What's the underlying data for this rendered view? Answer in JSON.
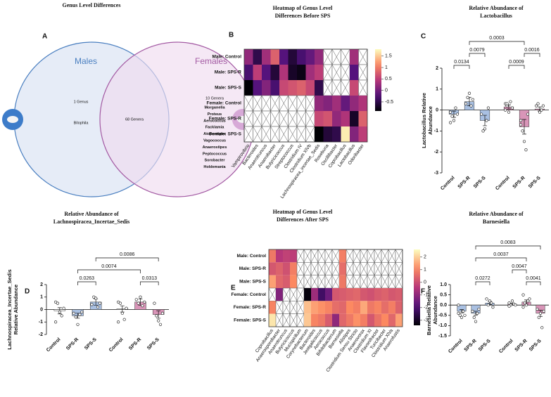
{
  "chart_data": [
    {
      "type": "venn",
      "panel": "A",
      "title": "Genus Level Differences",
      "sets": [
        {
          "name": "Males",
          "count_label": "1 Genus",
          "genera": [
            "Bilophila"
          ],
          "color": "#4a7fc0",
          "fill": "#d9e2f2"
        },
        {
          "name": "Females",
          "count_label": "10 Genera",
          "genera": [
            "Morganella",
            "Proteus",
            "Aerococcus",
            "Facklamia",
            "Atopostipes",
            "Vagococcus",
            "Anaerostipes",
            "Peptococcus",
            "Sorobacter",
            "Holdemania"
          ],
          "color": "#a35aa3",
          "fill": "#f0dcef"
        }
      ],
      "intersection_label": "68 Genera"
    },
    {
      "type": "heatmap",
      "panel": "B",
      "title": [
        "Heatmap of Genus Level",
        "Differences Before SPS"
      ],
      "rows": [
        "Male: Control",
        "Male: SPS-R",
        "Male: SPS-S",
        "Female: Control",
        "Female: SPS-R",
        "Female: SPS-S"
      ],
      "columns": [
        "Vampirovibrio",
        "Bacteroides",
        "Anaerotruncus",
        "Anaerobacter",
        "Butyricicoccus",
        "Streptococcus",
        "Clostridium IV",
        "Clostridium XlVb",
        "Lachnospiracea_incertae_Sedis",
        "Roseburia",
        "Oscillibacter",
        "Coprobacillus",
        "Lactobacillus",
        "Odoribacter"
      ],
      "values": [
        [
          0.2,
          -0.5,
          0.3,
          0.8,
          -0.2,
          -0.6,
          -0.3,
          -0.1,
          0.2,
          null,
          null,
          null,
          0.3,
          null
        ],
        [
          -0.3,
          0.5,
          -0.2,
          -0.6,
          0.4,
          -0.7,
          -0.8,
          0.3,
          0.5,
          null,
          null,
          null,
          -0.2,
          null
        ],
        [
          -0.9,
          -0.2,
          0.1,
          -0.3,
          0.6,
          0.7,
          0.8,
          0.6,
          -0.5,
          null,
          null,
          null,
          0.6,
          null
        ],
        [
          null,
          null,
          null,
          null,
          null,
          null,
          null,
          null,
          0.2,
          0.1,
          0.3,
          -0.1,
          0.2,
          0.4
        ],
        [
          null,
          null,
          null,
          null,
          null,
          null,
          null,
          null,
          0.6,
          0.7,
          0.2,
          0.4,
          -0.7,
          0.8
        ],
        [
          null,
          null,
          null,
          null,
          null,
          null,
          null,
          null,
          -0.9,
          -0.6,
          -0.5,
          1.7,
          0.1,
          0.5
        ]
      ],
      "zlim": [
        -0.9,
        1.8
      ],
      "zticks": [
        -0.5,
        0,
        0.5,
        1,
        1.5
      ]
    },
    {
      "type": "bar",
      "panel": "C",
      "title": [
        "Relative Abundance of",
        "Lactobacillus"
      ],
      "ylabel": [
        "Lactobacillus Relative",
        "Abundance"
      ],
      "categories": [
        "Control",
        "SPS-R",
        "SPS-S",
        "Control",
        "SPS-R",
        "SPS-S"
      ],
      "colors": [
        "#a9c0e2",
        "#a9c0e2",
        "#a9c0e2",
        "#d995b8",
        "#d995b8",
        "#d995b8"
      ],
      "values": [
        -0.2,
        0.4,
        -0.5,
        0.15,
        -0.8,
        0.05
      ],
      "errors": [
        0.15,
        0.2,
        0.25,
        0.1,
        0.35,
        0.1
      ],
      "points": [
        [
          -0.1,
          -0.3,
          -0.5,
          0.1,
          -0.2,
          -0.6
        ],
        [
          0.3,
          0.6,
          0.8,
          0.2,
          0.5
        ],
        [
          -0.2,
          -1.0,
          -0.9,
          -0.5,
          0.1
        ],
        [
          0.3,
          0.2,
          -0.1,
          0.4,
          0.1,
          0.0,
          0.3
        ],
        [
          -0.5,
          -1.0,
          -1.5,
          -1.9,
          -0.2,
          -0.7
        ],
        [
          0.2,
          0.3,
          -0.1,
          0.0,
          0.2
        ]
      ],
      "brackets": [
        {
          "from": 0,
          "to": 1,
          "label": "0.0134"
        },
        {
          "from": 1,
          "to": 2,
          "label": "0.0079"
        },
        {
          "from": 3,
          "to": 4,
          "label": "0.0009"
        },
        {
          "from": 4,
          "to": 5,
          "label": "0.0016"
        },
        {
          "from": 1,
          "to": 4,
          "label": "0.0003"
        }
      ],
      "ylim": [
        -3,
        2
      ],
      "yticks": [
        -3,
        -2,
        -1,
        0,
        1,
        2
      ]
    },
    {
      "type": "bar",
      "panel": "D",
      "title": [
        "Relative Abundance of",
        "Lachnospiracea_Incertae_Sedis"
      ],
      "ylabel": [
        "Lachnospiracea_Incertae_Sedis",
        "Relative Abundance"
      ],
      "categories": [
        "Control",
        "SPS-R",
        "SPS-S",
        "Control",
        "SPS-R",
        "SPS-S"
      ],
      "colors": [
        "#ffffff",
        "#a9c0e2",
        "#a9c0e2",
        "#ffffff",
        "#d995b8",
        "#d995b8"
      ],
      "values": [
        -0.1,
        -0.5,
        0.6,
        0.05,
        0.6,
        -0.4
      ],
      "errors": [
        0.25,
        0.2,
        0.25,
        0.25,
        0.25,
        0.3
      ],
      "points": [
        [
          0.6,
          0.5,
          -0.2,
          -0.5,
          0.1,
          -1.0
        ],
        [
          -0.3,
          -0.6,
          -1.2,
          -0.4,
          -0.2
        ],
        [
          0.4,
          1.0,
          0.9,
          0.2,
          0.5
        ],
        [
          0.6,
          0.5,
          -0.3,
          -0.8,
          0.1,
          -1.0
        ],
        [
          0.8,
          0.5,
          1.0,
          0.3,
          0.6
        ],
        [
          0.5,
          -0.5,
          -0.9,
          -1.2,
          -0.3
        ]
      ],
      "brackets": [
        {
          "from": 1,
          "to": 2,
          "label": "0.0263"
        },
        {
          "from": 4,
          "to": 5,
          "label": "0.0313"
        },
        {
          "from": 1,
          "to": 4,
          "label": "0.0074"
        },
        {
          "from": 2,
          "to": 5,
          "label": "0.0086"
        }
      ],
      "ylim": [
        -2,
        2
      ],
      "yticks": [
        -2,
        -1,
        0,
        1,
        2
      ]
    },
    {
      "type": "heatmap",
      "panel": "E",
      "title": [
        "Heatmap of Genus Level",
        "Differences After SPS"
      ],
      "rows": [
        "Male: Control",
        "Male: SPS-R",
        "Male: SPS-S",
        "Female: Control",
        "Female: SPS-R",
        "Female: SPS-S"
      ],
      "columns": [
        "Coprobacillus",
        "Anaerosporobacter",
        "Anaerotruncus",
        "Butyricicoccus",
        "Mucispirillum",
        "Corynebacterium",
        "Bacteroides",
        "Jeotgalicoccus",
        "Aerococcus",
        "Bifidobacterium",
        "Barnesiella",
        "Alistipes",
        "Clostridium Sensu Stricto",
        "Anaerovorax",
        "Clostridium XI",
        "Flavonifractor",
        "Turicibacter",
        "Clostridium XlVa",
        "Anaerofustis"
      ],
      "values": [
        [
          0.8,
          -0.4,
          -0.2,
          -0.3,
          null,
          null,
          null,
          null,
          null,
          null,
          0.9,
          null,
          null,
          null,
          null,
          null,
          null,
          null,
          null
        ],
        [
          0.2,
          0.4,
          0.1,
          0.9,
          null,
          null,
          null,
          null,
          null,
          null,
          0.6,
          null,
          null,
          null,
          null,
          null,
          null,
          null,
          null
        ],
        [
          1.4,
          0.5,
          0.3,
          1.1,
          null,
          null,
          null,
          null,
          null,
          null,
          0.8,
          null,
          null,
          null,
          null,
          null,
          null,
          null,
          null
        ],
        [
          null,
          -1.2,
          null,
          null,
          null,
          -3.3,
          -0.8,
          -2.2,
          -1.5,
          0.2,
          0.3,
          0.4,
          0.5,
          0.2,
          0.1,
          0.3,
          0.4,
          0.2,
          0.3
        ],
        [
          1.0,
          null,
          null,
          null,
          null,
          1.8,
          1.4,
          1.2,
          1.0,
          0.6,
          0.5,
          1.1,
          0.9,
          1.5,
          0.8,
          1.0,
          0.6,
          0.9,
          0.4
        ],
        [
          2.3,
          null,
          null,
          null,
          null,
          1.9,
          1.0,
          0.8,
          0.3,
          -1.0,
          0.5,
          0.8,
          1.2,
          0.9,
          0.2,
          0.7,
          1.1,
          0.5,
          1.4
        ]
      ],
      "zlim": [
        -3.4,
        2.6
      ],
      "zticks": [
        -3,
        -2,
        -1,
        0,
        1,
        2
      ]
    },
    {
      "type": "bar",
      "panel": "F",
      "title": [
        "Relative Abundance of",
        "Barnesiella"
      ],
      "ylabel": [
        "Barnesiella Relative",
        "Abundance"
      ],
      "categories": [
        "Control",
        "SPS-R",
        "SPS-S",
        "Control",
        "SPS-R",
        "SPS-S"
      ],
      "colors": [
        "#a9c0e2",
        "#a9c0e2",
        "#a9c0e2",
        "#d995b8",
        "#d995b8",
        "#d995b8"
      ],
      "values": [
        -0.3,
        -0.4,
        0.1,
        0.05,
        0.15,
        -0.4
      ],
      "errors": [
        0.08,
        0.1,
        0.08,
        0.04,
        0.1,
        0.15
      ],
      "points": [
        [
          0.0,
          -0.5,
          -0.6,
          -0.3,
          -0.5,
          -0.4
        ],
        [
          -0.3,
          -0.6,
          -0.8,
          -0.4,
          -0.2
        ],
        [
          0.3,
          0.0,
          0.2,
          0.1,
          -0.1
        ],
        [
          0.1,
          0.0,
          0.2,
          0.05,
          0.0,
          -0.05
        ],
        [
          0.5,
          0.1,
          0.0,
          0.2,
          0.3,
          -0.1
        ],
        [
          -0.2,
          -0.6,
          -0.4,
          -1.1,
          -0.3
        ]
      ],
      "brackets": [
        {
          "from": 1,
          "to": 2,
          "label": "0.0272"
        },
        {
          "from": 4,
          "to": 5,
          "label": "0.0041"
        },
        {
          "from": 3,
          "to": 4,
          "label": "0.0047"
        },
        {
          "from": 1,
          "to": 4,
          "label": "0.0037"
        },
        {
          "from": 1,
          "to": 5,
          "label": "0.0083"
        }
      ],
      "ylim": [
        -1.5,
        1.0
      ],
      "yticks": [
        -1.5,
        {
          "value": -1,
          "label": "-1.0"
        },
        -0.5,
        {
          "value": 0,
          "label": "0.0"
        },
        0.5,
        {
          "value": 1,
          "label": "1.0"
        }
      ]
    }
  ]
}
